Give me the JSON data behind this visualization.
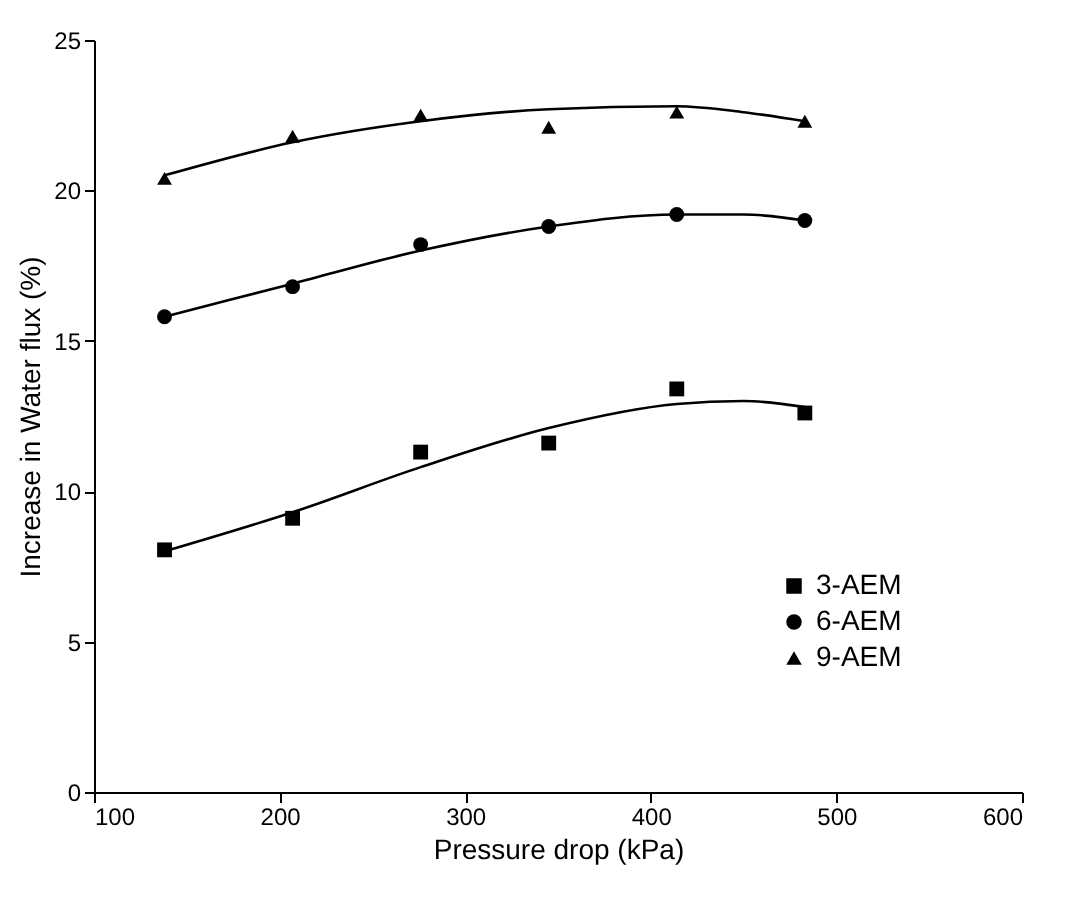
{
  "chart_data": {
    "type": "scatter",
    "xlabel": "Pressure drop (kPa)",
    "ylabel": "Increase in Water flux (%)",
    "x": [
      138,
      207,
      276,
      345,
      414,
      483
    ],
    "series": [
      {
        "name": "3-AEM",
        "color": "#000000",
        "marker": "square",
        "values": [
          8.05,
          9.1,
          11.3,
          11.6,
          13.4,
          12.6
        ]
      },
      {
        "name": "6-AEM",
        "color": "#000000",
        "marker": "circle",
        "values": [
          15.8,
          16.8,
          18.2,
          18.8,
          19.2,
          19.0
        ]
      },
      {
        "name": "9-AEM",
        "color": "#000000",
        "marker": "triangle",
        "values": [
          20.4,
          21.8,
          22.5,
          22.1,
          22.6,
          22.3
        ]
      },
      {
        "type": "line",
        "color": "#000000",
        "x": [
          138,
          207,
          276,
          345,
          414,
          450,
          483
        ],
        "values": [
          8.0,
          9.3,
          10.8,
          12.1,
          12.9,
          13.0,
          12.8
        ]
      },
      {
        "type": "line",
        "color": "#000000",
        "x": [
          138,
          207,
          276,
          345,
          414,
          450,
          483
        ],
        "values": [
          15.8,
          16.9,
          18.0,
          18.8,
          19.2,
          19.2,
          19.0
        ]
      },
      {
        "type": "line",
        "color": "#000000",
        "x": [
          138,
          207,
          276,
          345,
          414,
          450,
          483
        ],
        "values": [
          20.5,
          21.6,
          22.3,
          22.7,
          22.8,
          22.6,
          22.3
        ]
      }
    ],
    "xlim": [
      100,
      600
    ],
    "xticks": [
      100,
      200,
      300,
      400,
      500,
      600
    ],
    "ylim": [
      0,
      25
    ],
    "yticks": [
      0,
      5,
      10,
      15,
      20,
      25
    ],
    "grid": false,
    "legend": "bottom right"
  }
}
